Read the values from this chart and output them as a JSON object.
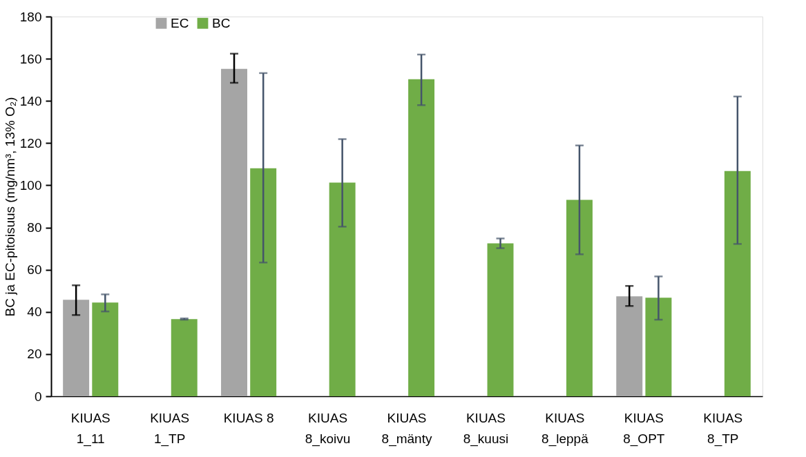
{
  "chart_data": {
    "type": "bar",
    "categories": [
      "KIUAS 1_11",
      "KIUAS 1_TP",
      "KIUAS 8",
      "KIUAS 8_koivu",
      "KIUAS 8_mänty",
      "KIUAS 8_kuusi",
      "KIUAS 8_leppä",
      "KIUAS 8_OPT",
      "KIUAS 8_TP"
    ],
    "series": [
      {
        "name": "EC",
        "color": "#a5a5a5",
        "values": [
          45.7,
          null,
          155.2,
          null,
          null,
          null,
          null,
          47.4,
          null
        ],
        "errors": [
          [
            38.5,
            52.6
          ],
          null,
          [
            148.6,
            162.4
          ],
          null,
          null,
          null,
          null,
          [
            42.8,
            52.3
          ],
          null
        ]
      },
      {
        "name": "BC",
        "color": "#70ad47",
        "values": [
          44.4,
          36.6,
          108.1,
          101.3,
          150.3,
          72.5,
          93.1,
          46.7,
          106.8
        ],
        "errors": [
          [
            40.2,
            48.3
          ],
          [
            36.3,
            36.9
          ],
          [
            63.4,
            153.2
          ],
          [
            80.4,
            121.9
          ],
          [
            138.0,
            162.0
          ],
          [
            70.2,
            74.8
          ],
          [
            67.3,
            118.9
          ],
          [
            36.3,
            56.8
          ],
          [
            72.2,
            142.1
          ]
        ]
      }
    ],
    "ylabel": "BC ja EC-pitoisuus (mg/nm³, 13% O₂)",
    "ylim": [
      0,
      180
    ],
    "yticks": [
      0,
      20,
      40,
      60,
      80,
      100,
      120,
      140,
      160,
      180
    ],
    "grid": false,
    "legend": "top"
  }
}
